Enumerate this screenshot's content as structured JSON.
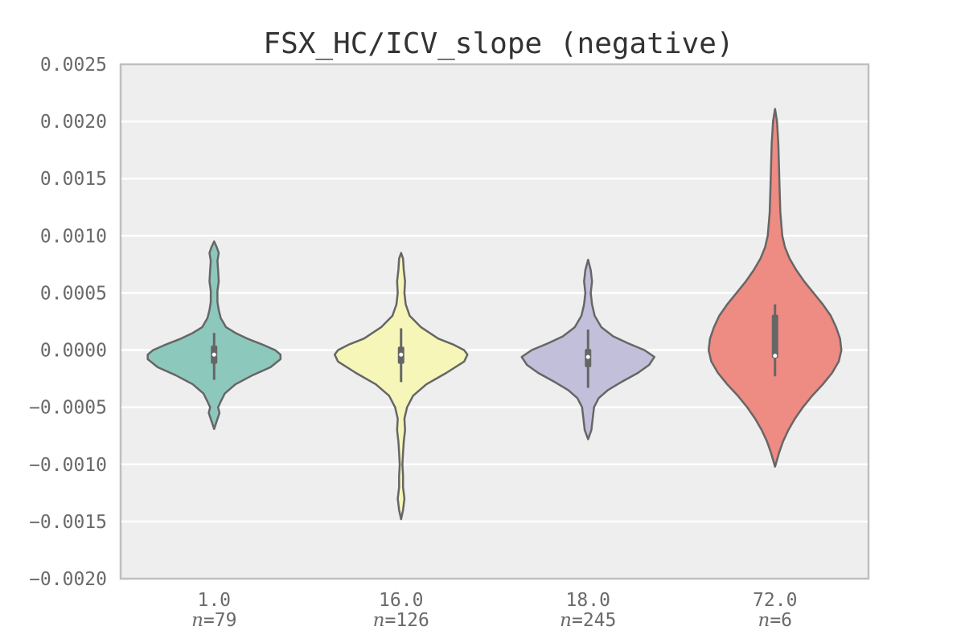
{
  "chart_data": {
    "type": "violin",
    "title": "FSX_HC/ICV_slope (negative)",
    "xlabel": "",
    "ylabel": "",
    "ylim": [
      -0.002,
      0.0025
    ],
    "y_ticks": [
      "0.0025",
      "0.0020",
      "0.0015",
      "0.0010",
      "0.0005",
      "0.0000",
      "−0.0005",
      "−0.0010",
      "−0.0015",
      "−0.0020"
    ],
    "y_tick_values": [
      0.0025,
      0.002,
      0.0015,
      0.001,
      0.0005,
      0.0,
      -0.0005,
      -0.001,
      -0.0015,
      -0.002
    ],
    "grid": true,
    "categories": [
      "1.0",
      "16.0",
      "18.0",
      "72.0"
    ],
    "series": [
      {
        "category": "1.0",
        "n_label": "=79",
        "color": "#8dc8bd",
        "min": -0.00069,
        "max": 0.00095,
        "q1": -0.00012,
        "median": -4e-05,
        "q3": 4e-05,
        "whisker_low": -0.00026,
        "whisker_high": 0.00015,
        "density_y": [
          -0.00069,
          -0.00062,
          -0.00055,
          -0.0005,
          -0.00045,
          -0.00038,
          -0.0003,
          -0.00022,
          -0.00015,
          -8e-05,
          -4e-05,
          0.0,
          5e-05,
          0.0001,
          0.00015,
          0.0002,
          0.00028,
          0.00035,
          0.00042,
          0.00052,
          0.0006,
          0.0007,
          0.00078,
          0.00085,
          0.0009,
          0.00095
        ],
        "density_w": [
          0.0,
          0.04,
          0.08,
          0.06,
          0.1,
          0.16,
          0.32,
          0.58,
          0.85,
          1.0,
          1.0,
          0.92,
          0.72,
          0.5,
          0.32,
          0.18,
          0.1,
          0.07,
          0.05,
          0.05,
          0.07,
          0.06,
          0.05,
          0.07,
          0.04,
          0.0
        ]
      },
      {
        "category": "16.0",
        "n_label": "=126",
        "color": "#f6f6b9",
        "min": -0.00148,
        "max": 0.00085,
        "q1": -0.00012,
        "median": -4e-05,
        "q3": 3e-05,
        "whisker_low": -0.00028,
        "whisker_high": 0.00019,
        "density_y": [
          -0.00148,
          -0.0014,
          -0.0013,
          -0.0012,
          -0.0011,
          -0.001,
          -0.0009,
          -0.0008,
          -0.0007,
          -0.0006,
          -0.0005,
          -0.0004,
          -0.0003,
          -0.0002,
          -0.0001,
          -4e-05,
          0.0,
          5e-05,
          0.0001,
          0.0002,
          0.0003,
          0.0004,
          0.0005,
          0.0006,
          0.0007,
          0.0008,
          0.00085
        ],
        "density_w": [
          0.0,
          0.03,
          0.05,
          0.03,
          0.03,
          0.02,
          0.03,
          0.04,
          0.06,
          0.05,
          0.09,
          0.18,
          0.38,
          0.68,
          0.95,
          1.0,
          0.95,
          0.78,
          0.56,
          0.3,
          0.13,
          0.07,
          0.05,
          0.06,
          0.04,
          0.03,
          0.0
        ]
      },
      {
        "category": "18.0",
        "n_label": "=245",
        "color": "#c2bfda",
        "min": -0.00078,
        "max": 0.00079,
        "q1": -0.00015,
        "median": -6e-05,
        "q3": 1e-05,
        "whisker_low": -0.00033,
        "whisker_high": 0.00018,
        "density_y": [
          -0.00078,
          -0.0007,
          -0.0006,
          -0.0005,
          -0.00042,
          -0.00035,
          -0.00028,
          -0.0002,
          -0.00013,
          -6e-05,
          0.0,
          6e-05,
          0.00012,
          0.0002,
          0.0003,
          0.0004,
          0.0005,
          0.0006,
          0.0007,
          0.00079
        ],
        "density_w": [
          0.0,
          0.05,
          0.07,
          0.09,
          0.16,
          0.3,
          0.5,
          0.75,
          0.92,
          1.0,
          0.85,
          0.6,
          0.38,
          0.2,
          0.1,
          0.06,
          0.04,
          0.06,
          0.04,
          0.0
        ]
      },
      {
        "category": "72.0",
        "n_label": "=6",
        "color": "#ee8b82",
        "min": -0.00102,
        "max": 0.00211,
        "q1": -7e-05,
        "median": -5e-05,
        "q3": 0.00031,
        "whisker_low": -0.00023,
        "whisker_high": 0.0004,
        "density_y": [
          -0.00102,
          -0.0009,
          -0.0008,
          -0.0007,
          -0.0006,
          -0.0005,
          -0.0004,
          -0.0003,
          -0.0002,
          -0.0001,
          0.0,
          0.0001,
          0.0002,
          0.0003,
          0.0004,
          0.0005,
          0.0006,
          0.0007,
          0.0008,
          0.0009,
          0.001,
          0.0012,
          0.0014,
          0.0016,
          0.0018,
          0.002,
          0.00211
        ],
        "density_w": [
          0.0,
          0.06,
          0.12,
          0.2,
          0.3,
          0.42,
          0.56,
          0.72,
          0.86,
          0.96,
          1.0,
          0.98,
          0.92,
          0.84,
          0.72,
          0.58,
          0.44,
          0.32,
          0.22,
          0.15,
          0.11,
          0.08,
          0.07,
          0.06,
          0.05,
          0.03,
          0.0
        ]
      }
    ]
  }
}
